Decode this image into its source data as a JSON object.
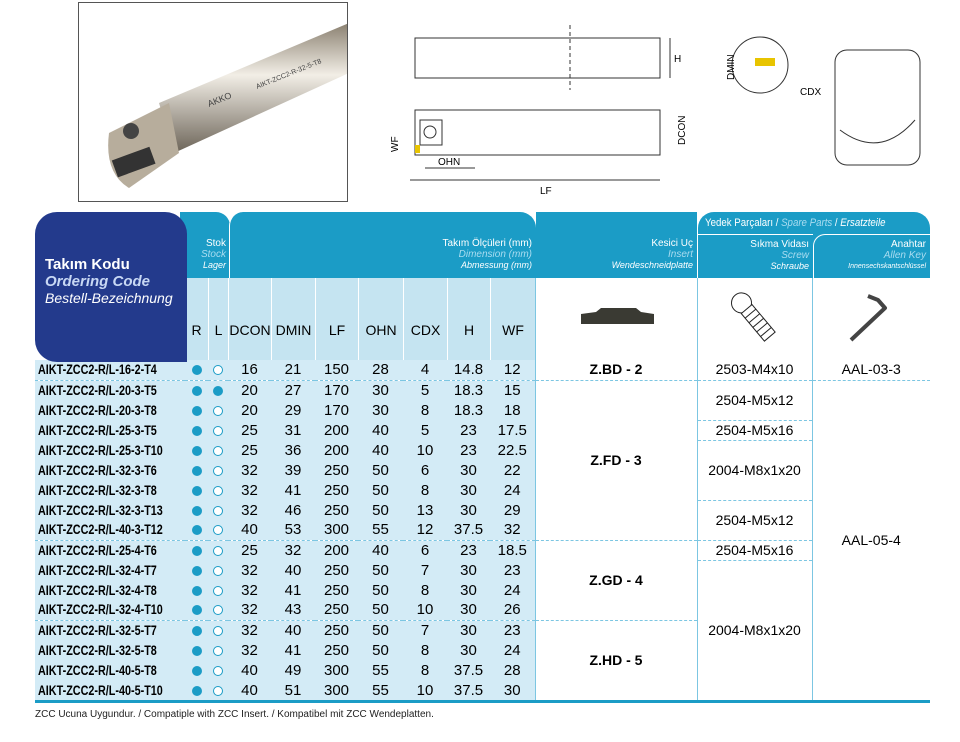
{
  "photo": {
    "brand": "AKKO",
    "engraving": "AIKT-ZCC2-R-32-5-T8"
  },
  "drawing": {
    "labels": {
      "h": "H",
      "dmin": "DMIN",
      "cdx": "CDX",
      "wf": "WF",
      "dcon": "DCON",
      "ohn": "OHN",
      "lf": "LF"
    }
  },
  "header": {
    "code": {
      "tr": "Takım Kodu",
      "en": "Ordering Code",
      "de": "Bestell-Bezeichnung"
    },
    "stock": {
      "tr": "Stok",
      "en": "Stock",
      "de": "Lager"
    },
    "dims": {
      "tr": "Takım Ölçüleri (mm)",
      "en": "Dimension (mm)",
      "de": "Abmessung (mm)"
    },
    "insert": {
      "tr": "Kesici Uç",
      "en": "Insert",
      "de": "Wendeschneidplatte"
    },
    "spare": {
      "tr": "Yedek Parçaları",
      "en": "Spare Parts",
      "de": "Ersatzteile"
    },
    "screw": {
      "tr": "Sıkma Vidası",
      "en": "Screw",
      "de": "Schraube"
    },
    "key": {
      "tr": "Anahtar",
      "en": "Allen Key",
      "de": "Innensechskantschlüssel"
    },
    "columns": [
      "R",
      "L",
      "DCON",
      "DMIN",
      "LF",
      "OHN",
      "CDX",
      "H",
      "WF"
    ]
  },
  "rows": [
    {
      "code": "AIKT-ZCC2-R/L-16-2-T4",
      "R": true,
      "L": false,
      "v": [
        "16",
        "21",
        "150",
        "28",
        "4",
        "14.8",
        "12"
      ]
    },
    {
      "code": "AIKT-ZCC2-R/L-20-3-T5",
      "R": true,
      "L": true,
      "v": [
        "20",
        "27",
        "170",
        "30",
        "5",
        "18.3",
        "15"
      ]
    },
    {
      "code": "AIKT-ZCC2-R/L-20-3-T8",
      "R": true,
      "L": false,
      "v": [
        "20",
        "29",
        "170",
        "30",
        "8",
        "18.3",
        "18"
      ]
    },
    {
      "code": "AIKT-ZCC2-R/L-25-3-T5",
      "R": true,
      "L": false,
      "v": [
        "25",
        "31",
        "200",
        "40",
        "5",
        "23",
        "17.5"
      ]
    },
    {
      "code": "AIKT-ZCC2-R/L-25-3-T10",
      "R": true,
      "L": false,
      "v": [
        "25",
        "36",
        "200",
        "40",
        "10",
        "23",
        "22.5"
      ]
    },
    {
      "code": "AIKT-ZCC2-R/L-32-3-T6",
      "R": true,
      "L": false,
      "v": [
        "32",
        "39",
        "250",
        "50",
        "6",
        "30",
        "22"
      ]
    },
    {
      "code": "AIKT-ZCC2-R/L-32-3-T8",
      "R": true,
      "L": false,
      "v": [
        "32",
        "41",
        "250",
        "50",
        "8",
        "30",
        "24"
      ]
    },
    {
      "code": "AIKT-ZCC2-R/L-32-3-T13",
      "R": true,
      "L": false,
      "v": [
        "32",
        "46",
        "250",
        "50",
        "13",
        "30",
        "29"
      ]
    },
    {
      "code": "AIKT-ZCC2-R/L-40-3-T12",
      "R": true,
      "L": false,
      "v": [
        "40",
        "53",
        "300",
        "55",
        "12",
        "37.5",
        "32"
      ]
    },
    {
      "code": "AIKT-ZCC2-R/L-25-4-T6",
      "R": true,
      "L": false,
      "v": [
        "25",
        "32",
        "200",
        "40",
        "6",
        "23",
        "18.5"
      ]
    },
    {
      "code": "AIKT-ZCC2-R/L-32-4-T7",
      "R": true,
      "L": false,
      "v": [
        "32",
        "40",
        "250",
        "50",
        "7",
        "30",
        "23"
      ]
    },
    {
      "code": "AIKT-ZCC2-R/L-32-4-T8",
      "R": true,
      "L": false,
      "v": [
        "32",
        "41",
        "250",
        "50",
        "8",
        "30",
        "24"
      ]
    },
    {
      "code": "AIKT-ZCC2-R/L-32-4-T10",
      "R": true,
      "L": false,
      "v": [
        "32",
        "43",
        "250",
        "50",
        "10",
        "30",
        "26"
      ]
    },
    {
      "code": "AIKT-ZCC2-R/L-32-5-T7",
      "R": true,
      "L": false,
      "v": [
        "32",
        "40",
        "250",
        "50",
        "7",
        "30",
        "23"
      ]
    },
    {
      "code": "AIKT-ZCC2-R/L-32-5-T8",
      "R": true,
      "L": false,
      "v": [
        "32",
        "41",
        "250",
        "50",
        "8",
        "30",
        "24"
      ]
    },
    {
      "code": "AIKT-ZCC2-R/L-40-5-T8",
      "R": true,
      "L": false,
      "v": [
        "40",
        "49",
        "300",
        "55",
        "8",
        "37.5",
        "28"
      ]
    },
    {
      "code": "AIKT-ZCC2-R/L-40-5-T10",
      "R": true,
      "L": false,
      "v": [
        "40",
        "51",
        "300",
        "55",
        "10",
        "37.5",
        "30"
      ]
    }
  ],
  "inserts": [
    {
      "label": "Z.BD - 2",
      "span": 1
    },
    {
      "label": "Z.FD - 3",
      "span": 8
    },
    {
      "label": "Z.GD - 4",
      "span": 4
    },
    {
      "label": "Z.HD - 5",
      "span": 4
    }
  ],
  "screws": [
    {
      "label": "2503-M4x10",
      "span": 1
    },
    {
      "label": "2504-M5x12",
      "span": 2
    },
    {
      "label": "2504-M5x16",
      "span": 1
    },
    {
      "label": "2004-M8x1x20",
      "span": 3
    },
    {
      "label": "2504-M5x12",
      "span": 2
    },
    {
      "label": "2504-M5x16",
      "span": 1
    },
    {
      "label": "2004-M8x1x20",
      "span": 7
    }
  ],
  "keys": [
    {
      "label": "AAL-03-3",
      "span": 1
    },
    {
      "label": "AAL-05-4",
      "span": 16
    }
  ],
  "footer": "ZCC Ucuna Uygundur. / Compatiple with ZCC Insert. / Kompatibel mit ZCC Wendeplatten.",
  "colors": {
    "navy": "#233a8c",
    "teal": "#1b9cc6",
    "light": "#c5e4f1"
  }
}
